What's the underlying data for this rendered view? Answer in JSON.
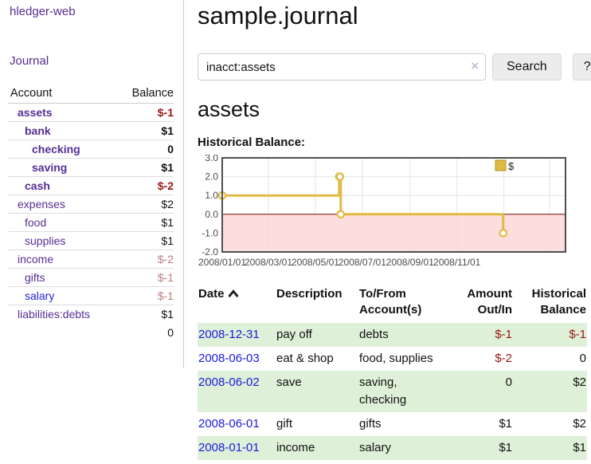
{
  "sidebar": {
    "brand": "hledger-web",
    "nav_journal": "Journal",
    "accounts_table": {
      "account_header": "Account",
      "balance_header": "Balance",
      "rows": [
        {
          "name": "assets",
          "depth": 1,
          "balance": "$-1",
          "bold": true,
          "name_color": "purple",
          "balance_color": "neg"
        },
        {
          "name": "bank",
          "depth": 2,
          "balance": "$1",
          "bold": true,
          "name_color": "purple",
          "balance_color": "pos"
        },
        {
          "name": "checking",
          "depth": 3,
          "balance": "0",
          "bold": true,
          "name_color": "purple",
          "balance_color": "pos"
        },
        {
          "name": "saving",
          "depth": 3,
          "balance": "$1",
          "bold": true,
          "name_color": "purple",
          "balance_color": "pos"
        },
        {
          "name": "cash",
          "depth": 2,
          "balance": "$-2",
          "bold": true,
          "name_color": "purple",
          "balance_color": "neg"
        },
        {
          "name": "expenses",
          "depth": 1,
          "balance": "$2",
          "bold": false,
          "name_color": "purple",
          "balance_color": "pos"
        },
        {
          "name": "food",
          "depth": 2,
          "balance": "$1",
          "bold": false,
          "name_color": "purple",
          "balance_color": "pos"
        },
        {
          "name": "supplies",
          "depth": 2,
          "balance": "$1",
          "bold": false,
          "name_color": "purple",
          "balance_color": "pos"
        },
        {
          "name": "income",
          "depth": 1,
          "balance": "$-2",
          "bold": false,
          "name_color": "purple",
          "balance_color": "negdim"
        },
        {
          "name": "gifts",
          "depth": 2,
          "balance": "$-1",
          "bold": false,
          "name_color": "purple",
          "balance_color": "negdim"
        },
        {
          "name": "salary",
          "depth": 2,
          "balance": "$-1",
          "bold": false,
          "name_color": "blue",
          "balance_color": "negdim"
        },
        {
          "name": "liabilities:debts",
          "depth": 1,
          "balance": "$1",
          "bold": false,
          "name_color": "purple",
          "balance_color": "pos"
        }
      ],
      "total": "0"
    }
  },
  "main": {
    "title": "sample.journal",
    "search": {
      "value": "inacct:assets",
      "clear_icon": "×",
      "search_button": "Search",
      "help_button": "?"
    },
    "account_heading": "assets",
    "chart_label": "Historical Balance:",
    "transactions": {
      "headers": {
        "date": "Date",
        "description": "Description",
        "accounts": "To/From Account(s)",
        "amount": "Amount Out/In",
        "balance": "Historical Balance"
      },
      "rows": [
        {
          "date": "2008-12-31",
          "description": "pay off",
          "accounts": "debts",
          "amount": "$-1",
          "balance": "$-1",
          "amount_color": "neg",
          "balance_color": "neg"
        },
        {
          "date": "2008-06-03",
          "description": "eat & shop",
          "accounts": "food, supplies",
          "amount": "$-2",
          "balance": "0",
          "amount_color": "neg",
          "balance_color": "pos"
        },
        {
          "date": "2008-06-02",
          "description": "save",
          "accounts": "saving, checking",
          "amount": "0",
          "balance": "$2",
          "amount_color": "pos",
          "balance_color": "pos"
        },
        {
          "date": "2008-06-01",
          "description": "gift",
          "accounts": "gifts",
          "amount": "$1",
          "balance": "$2",
          "amount_color": "pos",
          "balance_color": "pos"
        },
        {
          "date": "2008-01-01",
          "description": "income",
          "accounts": "salary",
          "amount": "$1",
          "balance": "$1",
          "amount_color": "pos",
          "balance_color": "pos"
        }
      ]
    }
  },
  "chart_data": {
    "type": "line",
    "step": true,
    "title": "Historical Balance:",
    "series": [
      {
        "name": "$",
        "x": [
          "2008-01-01",
          "2008-06-01",
          "2008-06-02",
          "2008-06-03",
          "2008-12-31"
        ],
        "values": [
          1,
          2,
          2,
          0,
          -1
        ]
      }
    ],
    "ylim": [
      -2,
      3
    ],
    "ytick_values": [
      3,
      2,
      1,
      0,
      -1,
      -2
    ],
    "yticks": [
      "3.0",
      "2.0",
      "1.0",
      "0.0",
      "-1.0",
      "-2.0"
    ],
    "xticks": [
      {
        "label": "2008/01/01",
        "day": 0
      },
      {
        "label": "2008/03/01",
        "day": 60
      },
      {
        "label": "2008/05/01",
        "day": 121
      },
      {
        "label": "2008/07/01",
        "day": 182
      },
      {
        "label": "2008/09/01",
        "day": 244
      },
      {
        "label": "2008/11/01",
        "day": 305
      }
    ],
    "grid_days": [
      60,
      121,
      182,
      244,
      305,
      366,
      425
    ],
    "x_range_days": [
      0,
      446
    ],
    "grid": true,
    "legend": {
      "label": "$",
      "position": "top-right"
    },
    "colors": {
      "line": "#e0ba42",
      "marker_fill": "#ffffff",
      "legend_border": "#b3922a",
      "negative_region": "#fbd6d6",
      "zero_line": "#7a0c0c",
      "grid": "#e4e4e4",
      "border": "#4f4f4f",
      "tick_text": "#4a4a4a"
    }
  }
}
